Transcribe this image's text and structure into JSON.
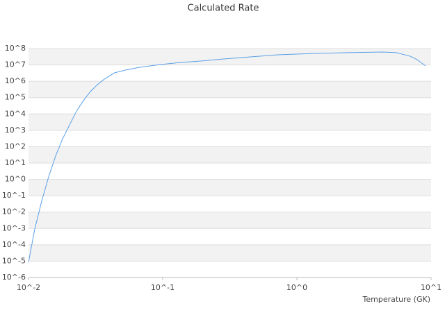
{
  "chart_data": {
    "type": "line",
    "title": "Calculated Rate",
    "xlabel": "Temperature (GK)",
    "xscale": "log",
    "yscale": "log",
    "grid": true,
    "xlim": [
      0.01,
      10
    ],
    "ylim": [
      1e-06,
      100000000.0
    ],
    "xticks": [
      {
        "value": 0.01,
        "label": "10^-2"
      },
      {
        "value": 0.1,
        "label": "10^-1"
      },
      {
        "value": 1,
        "label": "10^0"
      },
      {
        "value": 10,
        "label": "10^1"
      }
    ],
    "yticks": [
      {
        "value": 1e-06,
        "label": "10^-6"
      },
      {
        "value": 1e-05,
        "label": "10^-5"
      },
      {
        "value": 0.0001,
        "label": "10^-4"
      },
      {
        "value": 0.001,
        "label": "10^-3"
      },
      {
        "value": 0.01,
        "label": "10^-2"
      },
      {
        "value": 0.1,
        "label": "10^-1"
      },
      {
        "value": 1,
        "label": "10^0"
      },
      {
        "value": 10,
        "label": "10^1"
      },
      {
        "value": 100,
        "label": "10^2"
      },
      {
        "value": 1000,
        "label": "10^3"
      },
      {
        "value": 10000,
        "label": "10^4"
      },
      {
        "value": 100000,
        "label": "10^5"
      },
      {
        "value": 1000000,
        "label": "10^6"
      },
      {
        "value": 10000000,
        "label": "10^7"
      },
      {
        "value": 100000000,
        "label": "10^8"
      }
    ],
    "x": [
      0.01,
      0.01114,
      0.01254,
      0.01412,
      0.01591,
      0.01795,
      0.02023,
      0.0228,
      0.02566,
      0.02892,
      0.03258,
      0.03672,
      0.04388,
      0.05248,
      0.06668,
      0.09528,
      0.1365,
      0.195,
      0.2793,
      0.4498,
      0.7244,
      1.315,
      2.388,
      4.335,
      5.508,
      6.998,
      7.87,
      9.09
    ],
    "series": [
      {
        "color": "#5aa0e6",
        "values": [
          8.5e-06,
          0.00093,
          0.047,
          1.41,
          26.3,
          302,
          2138,
          15100,
          66100,
          234000,
          617000,
          1350000,
          3310000,
          4790000,
          7080000,
          10500000,
          14100000,
          17400000,
          22900000,
          30900000,
          41700000,
          50100000,
          56200000,
          61700000,
          56200000,
          33900000,
          20900000,
          8710000
        ]
      }
    ]
  }
}
